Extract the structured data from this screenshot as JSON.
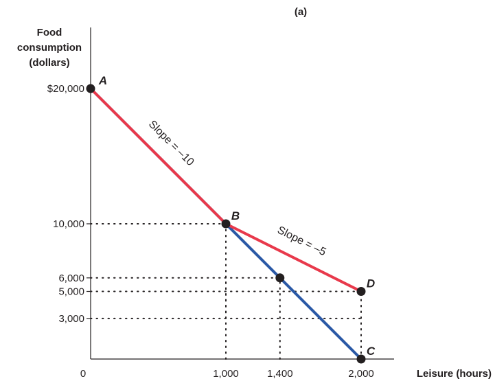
{
  "chart_data": {
    "type": "line",
    "panel_label": "(a)",
    "ylabel_lines": [
      "Food",
      "consumption",
      "(dollars)"
    ],
    "xlabel": "Leisure (hours)",
    "xlim": [
      0,
      2000
    ],
    "ylim": [
      0,
      20000
    ],
    "origin_label": "0",
    "x_ticks": [
      {
        "value": 1000,
        "label": "1,000"
      },
      {
        "value": 1400,
        "label": "1,400"
      },
      {
        "value": 2000,
        "label": "2,000"
      }
    ],
    "y_ticks": [
      {
        "value": 20000,
        "label": "$20,000"
      },
      {
        "value": 10000,
        "label": "10,000"
      },
      {
        "value": 6000,
        "label": "6,000"
      },
      {
        "value": 5000,
        "label": "5,000"
      },
      {
        "value": 3000,
        "label": "3,000"
      }
    ],
    "series": [
      {
        "color": "#2b59a6",
        "points": [
          [
            0,
            20000
          ],
          [
            2000,
            0
          ]
        ]
      },
      {
        "color": "#e8394b",
        "points": [
          [
            0,
            20000
          ],
          [
            1000,
            10000
          ],
          [
            2000,
            5000
          ]
        ]
      }
    ],
    "points": [
      {
        "label": "A",
        "x": 0,
        "y": 20000
      },
      {
        "label": "B",
        "x": 1000,
        "y": 10000
      },
      {
        "label": "",
        "x": 1400,
        "y": 6000
      },
      {
        "label": "D",
        "x": 2000,
        "y": 5000
      },
      {
        "label": "C",
        "x": 2000,
        "y": 0
      }
    ],
    "annotations": [
      {
        "text": "Slope = –10",
        "x": 500,
        "y": 15000,
        "along_segment": [
          [
            0,
            20000
          ],
          [
            1000,
            10000
          ]
        ]
      },
      {
        "text": "Slope = –5",
        "x": 1500,
        "y": 7500,
        "along_segment": [
          [
            1000,
            10000
          ],
          [
            2000,
            5000
          ]
        ]
      }
    ],
    "dotted_guides": [
      {
        "from": [
          0,
          10000
        ],
        "to": [
          1000,
          10000
        ]
      },
      {
        "from": [
          1000,
          0
        ],
        "to": [
          1000,
          10000
        ]
      },
      {
        "from": [
          0,
          6000
        ],
        "to": [
          1400,
          6000
        ]
      },
      {
        "from": [
          1400,
          0
        ],
        "to": [
          1400,
          6000
        ]
      },
      {
        "from": [
          0,
          5000
        ],
        "to": [
          2000,
          5000
        ]
      },
      {
        "from": [
          0,
          3000
        ],
        "to": [
          2000,
          3000
        ]
      },
      {
        "from": [
          1000,
          3000
        ],
        "to": [
          1000,
          6000
        ]
      },
      {
        "from": [
          2000,
          0
        ],
        "to": [
          2000,
          5000
        ]
      }
    ],
    "colors": {
      "axis": "#231f20",
      "budget_line": "#2b59a6",
      "kinked_line": "#e8394b",
      "point": "#231f20"
    }
  }
}
